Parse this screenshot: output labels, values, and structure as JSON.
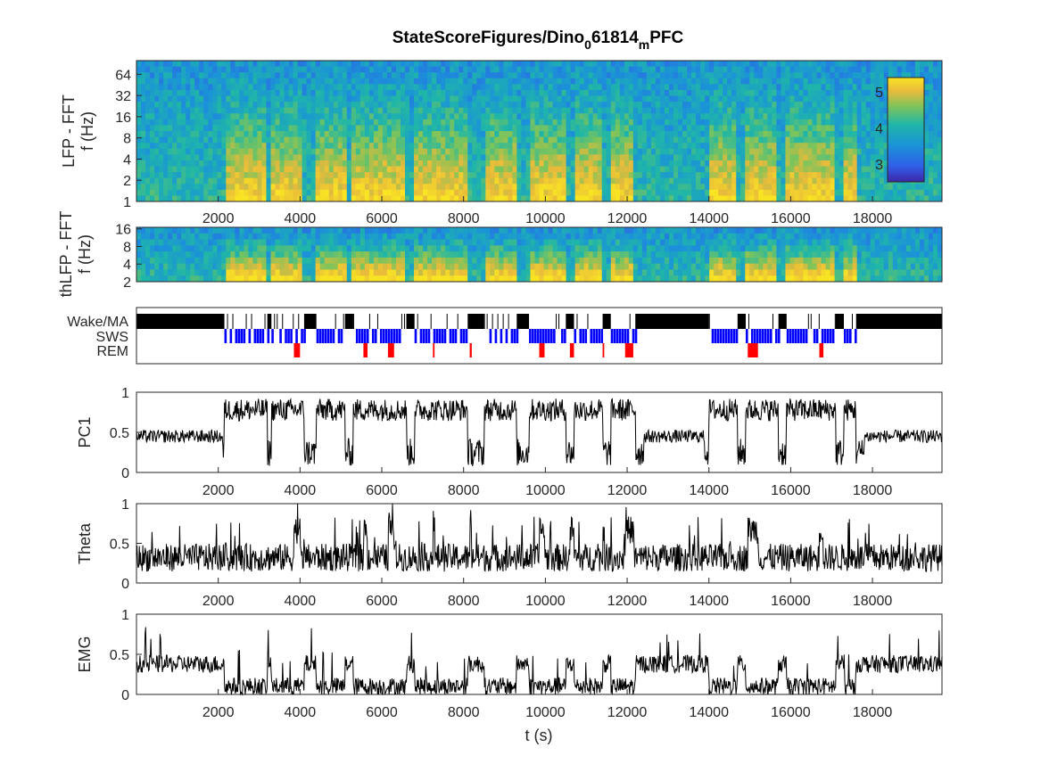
{
  "title_main": "StateScoreFigures/Dino",
  "title_sub1": "0",
  "title_mid": "61814",
  "title_sub2": "m",
  "title_end": "PFC",
  "colors": {
    "spec_low": "#3e26a8",
    "spec_mid": "#20b2aa",
    "spec_high": "#f9d624",
    "wake": "#000000",
    "sws": "#0000ff",
    "rem": "#ff0000",
    "trace": "#000000"
  },
  "chart_data": [
    {
      "type": "heatmap",
      "name": "LFP - FFT",
      "ylabel_line1": "LFP - FFT",
      "ylabel_line2": "f (Hz)",
      "y_scale": "log",
      "y_ticks": [
        "1",
        "2",
        "4",
        "8",
        "16",
        "32",
        "64"
      ],
      "x_ticks": [
        "2000",
        "4000",
        "6000",
        "8000",
        "10000",
        "12000",
        "14000",
        "16000",
        "18000"
      ],
      "xlim": [
        0,
        19700
      ],
      "ylim": [
        1,
        100
      ],
      "colorbar": {
        "ticks": [
          "3",
          "4",
          "5"
        ],
        "range": [
          2.5,
          5.4
        ]
      }
    },
    {
      "type": "heatmap",
      "name": "thLFP - FFT",
      "ylabel_line1": "thLFP - FFT",
      "ylabel_line2": "f (Hz)",
      "y_scale": "log",
      "y_ticks": [
        "2",
        "4",
        "8",
        "16"
      ],
      "xlim": [
        0,
        19700
      ],
      "ylim": [
        2,
        17
      ]
    },
    {
      "type": "table",
      "name": "hypnogram",
      "labels": [
        "Wake/MA",
        "SWS",
        "REM"
      ],
      "xlim": [
        0,
        19700
      ],
      "sws_bouts": [
        [
          2150,
          3200
        ],
        [
          3300,
          4100
        ],
        [
          4400,
          5100
        ],
        [
          5300,
          6600
        ],
        [
          6800,
          8100
        ],
        [
          8500,
          9300
        ],
        [
          9600,
          10500
        ],
        [
          10700,
          11400
        ],
        [
          11600,
          12200
        ],
        [
          14000,
          14700
        ],
        [
          14900,
          15700
        ],
        [
          15900,
          17100
        ],
        [
          17300,
          17600
        ]
      ],
      "rem_bouts": [
        [
          3850,
          4000
        ],
        [
          5550,
          5650
        ],
        [
          6150,
          6300
        ],
        [
          7250,
          7290
        ],
        [
          8150,
          8200
        ],
        [
          9850,
          9980
        ],
        [
          10600,
          10700
        ],
        [
          11400,
          11440
        ],
        [
          11950,
          12150
        ],
        [
          14950,
          15200
        ],
        [
          16700,
          16800
        ]
      ]
    },
    {
      "type": "line",
      "name": "PC1",
      "ylabel": "PC1",
      "y_ticks": [
        "0",
        "0.5",
        "1"
      ],
      "x_ticks": [
        "2000",
        "4000",
        "6000",
        "8000",
        "10000",
        "12000",
        "14000",
        "16000",
        "18000"
      ],
      "xlim": [
        0,
        19700
      ],
      "ylim": [
        0,
        1
      ]
    },
    {
      "type": "line",
      "name": "Theta",
      "ylabel": "Theta",
      "y_ticks": [
        "0",
        "0.5",
        "1"
      ],
      "x_ticks": [
        "2000",
        "4000",
        "6000",
        "8000",
        "10000",
        "12000",
        "14000",
        "16000",
        "18000"
      ],
      "xlim": [
        0,
        19700
      ],
      "ylim": [
        0,
        1
      ]
    },
    {
      "type": "line",
      "name": "EMG",
      "ylabel": "EMG",
      "xlabel": "t (s)",
      "y_ticks": [
        "0",
        "0.5",
        "1"
      ],
      "x_ticks": [
        "2000",
        "4000",
        "6000",
        "8000",
        "10000",
        "12000",
        "14000",
        "16000",
        "18000"
      ],
      "xlim": [
        0,
        19700
      ],
      "ylim": [
        0,
        1
      ]
    }
  ]
}
